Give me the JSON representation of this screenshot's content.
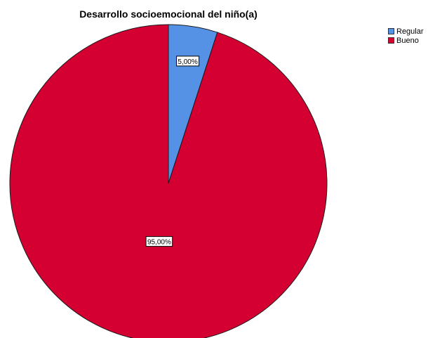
{
  "chart_data": {
    "type": "pie",
    "title": "Desarrollo socioemocional del niño(a)",
    "categories": [
      "Regular",
      "Bueno"
    ],
    "values": [
      5.0,
      95.0
    ],
    "data_labels": [
      "5,00%",
      "95,00%"
    ],
    "colors": [
      "#5592e6",
      "#d30031"
    ],
    "start_angle": "top",
    "direction": "clockwise",
    "legend": "top-right"
  }
}
